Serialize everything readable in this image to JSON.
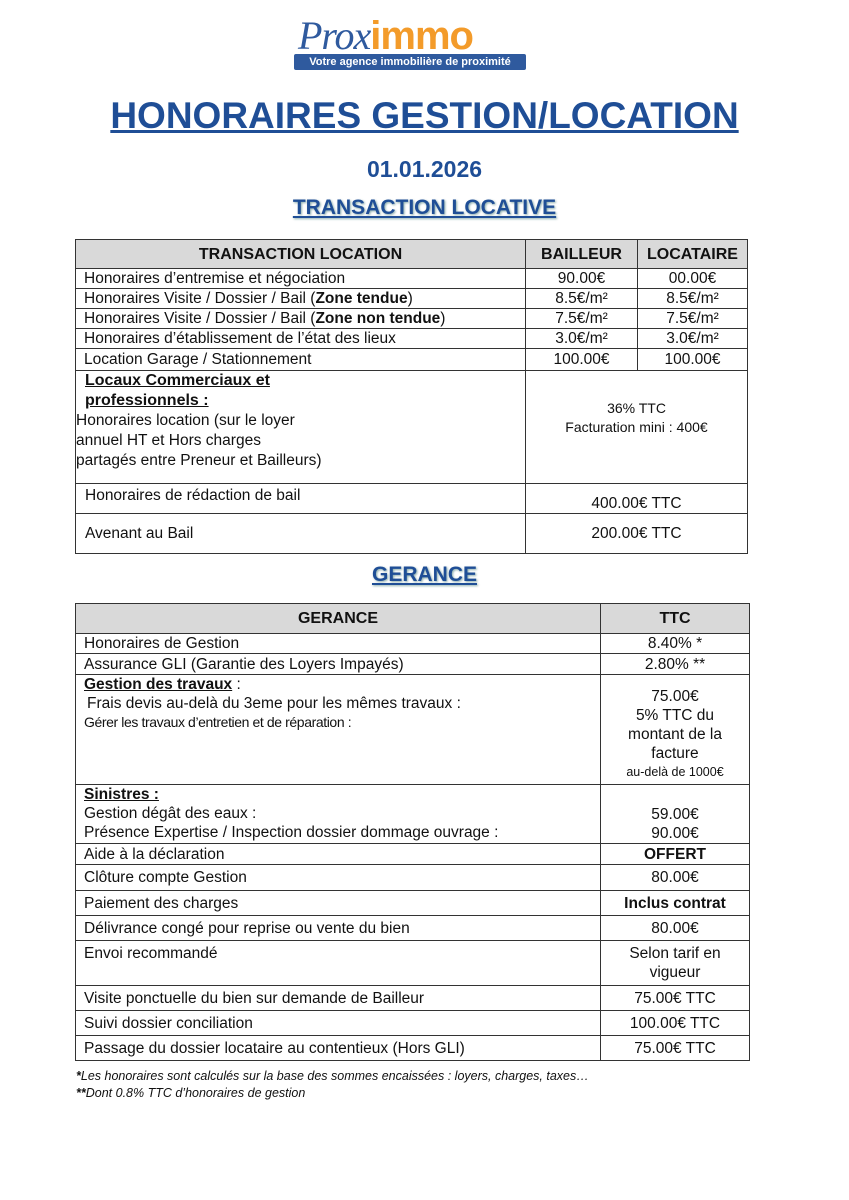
{
  "logo": {
    "part1": "Prox",
    "part2": "immo",
    "tagline": "Votre agence immobilière de proximité"
  },
  "title": "HONORAIRES GESTION/LOCATION",
  "date": "01.01.2026",
  "section1": "TRANSACTION LOCATIVE",
  "table1": {
    "headers": [
      "TRANSACTION LOCATION",
      "BAILLEUR",
      "LOCATAIRE"
    ],
    "rows": [
      {
        "label": "Honoraires d’entremise et négociation",
        "bailleur": "90.00€",
        "locataire": "00.00€"
      },
      {
        "label": "Honoraires Visite / Dossier / Bail (",
        "bold": "Zone tendue",
        "end": ")",
        "bailleur": "8.5€/m²",
        "locataire": "8.5€/m²"
      },
      {
        "label": "Honoraires Visite / Dossier / Bail (",
        "bold": "Zone non tendue",
        "end": ")",
        "bailleur": "7.5€/m²",
        "locataire": "7.5€/m²"
      },
      {
        "label": "Honoraires d’établissement de l’état des lieux",
        "bailleur": "3.0€/m²",
        "locataire": "3.0€/m²"
      },
      {
        "label": "Location Garage / Stationnement",
        "bailleur": "100.00€",
        "locataire": "100.00€"
      }
    ],
    "locaux": {
      "heading1": "Locaux Commerciaux et",
      "heading2": "professionnels :",
      "line1": "Honoraires location (sur le loyer",
      "line2": "annuel HT et Hors charges",
      "line3": "partagés entre Preneur et Bailleurs)",
      "value1": "36% TTC",
      "value2": "Facturation mini : 400€"
    },
    "redaction": {
      "label": "Honoraires de rédaction de bail",
      "value": "400.00€ TTC"
    },
    "avenant": {
      "label": "Avenant au Bail",
      "value": "200.00€ TTC"
    }
  },
  "section2": "GERANCE",
  "table2": {
    "headers": [
      "GERANCE",
      "TTC"
    ],
    "gestion": {
      "label": "Honoraires de Gestion",
      "value": "8.40% *"
    },
    "gli": {
      "label": "Assurance GLI (Garantie des Loyers Impayés)",
      "value": "2.80% **"
    },
    "travaux": {
      "heading": "Gestion des travaux",
      "colon": " :",
      "line1": "Frais devis au-delà du 3eme pour les mêmes travaux :",
      "line2": "Gérer les travaux d’entretien et de réparation :",
      "value1": "75.00€",
      "value2": "5% TTC du montant de la facture",
      "value3": "au-delà de 1000€"
    },
    "sinistres": {
      "heading": "Sinistres :",
      "line1": "Gestion dégât des eaux :",
      "line2": "Présence Expertise / Inspection dossier dommage ouvrage :",
      "value1": "59.00€",
      "value2": "90.00€"
    },
    "rows": [
      {
        "label": "Aide à la déclaration",
        "value": "OFFERT"
      },
      {
        "label": "Clôture compte Gestion",
        "value": "80.00€"
      },
      {
        "label": "Paiement des charges",
        "value": "Inclus contrat"
      },
      {
        "label": "Délivrance congé pour reprise ou vente du bien",
        "value": "80.00€"
      },
      {
        "label": "Envoi recommandé",
        "value": "Selon tarif en vigueur"
      },
      {
        "label": "Visite ponctuelle du bien sur demande de Bailleur",
        "value": "75.00€ TTC"
      },
      {
        "label": "Suivi dossier conciliation",
        "value": "100.00€ TTC"
      },
      {
        "label": "Passage du dossier locataire au contentieux (Hors GLI)",
        "value": "75.00€ TTC"
      }
    ]
  },
  "notes": {
    "n1_star": "*",
    "n1": "Les honoraires sont calculés sur la base des sommes encaissées : loyers, charges, taxes…",
    "n2_star": "**",
    "n2": "Dont 0.8% TTC d’honoraires de gestion"
  }
}
